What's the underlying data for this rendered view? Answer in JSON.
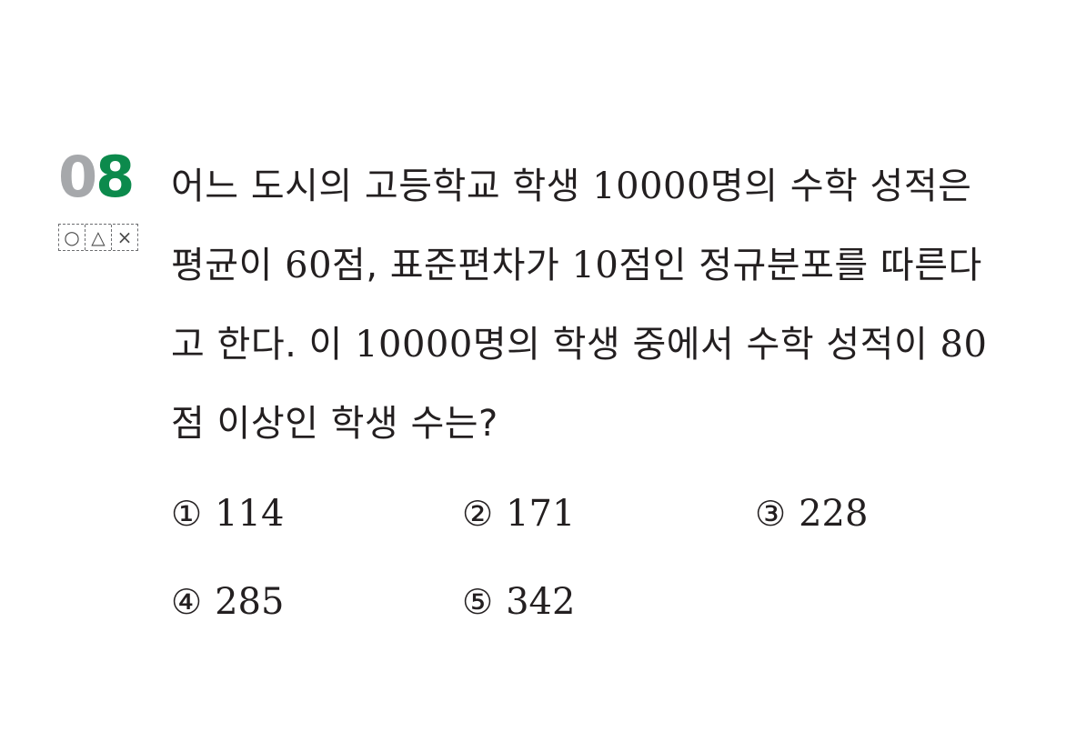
{
  "question": {
    "number_first": "0",
    "number_second": "8",
    "self_check_marks": [
      "○",
      "△",
      "×"
    ],
    "lines": [
      "어느 도시의 고등학교 학생 10000명의 수학 성적은",
      "평균이 60점, 표준편차가 10점인 정규분포를 따른다",
      "고 한다. 이 10000명의 학생 중에서 수학 성적이 80",
      "점 이상인 학생 수는?"
    ]
  },
  "choices": [
    {
      "marker": "①",
      "value": "114"
    },
    {
      "marker": "②",
      "value": "171"
    },
    {
      "marker": "③",
      "value": "228"
    },
    {
      "marker": "④",
      "value": "285"
    },
    {
      "marker": "⑤",
      "value": "342"
    }
  ],
  "colors": {
    "number_gray": "#a6a8ab",
    "number_green": "#0c8a4c",
    "text": "#231f20"
  }
}
